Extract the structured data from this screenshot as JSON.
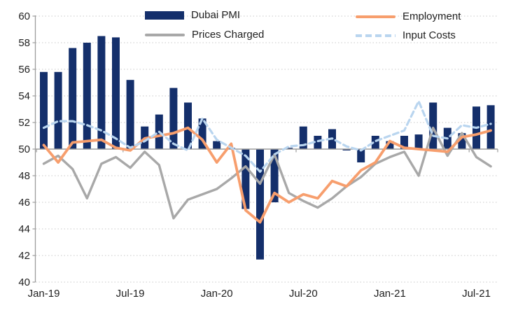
{
  "page": {
    "background": "#ffffff"
  },
  "chart_data": {
    "type": "combo",
    "categories": [
      "Jan-19",
      "Feb-19",
      "Mar-19",
      "Apr-19",
      "May-19",
      "Jun-19",
      "Jul-19",
      "Aug-19",
      "Sep-19",
      "Oct-19",
      "Nov-19",
      "Dec-19",
      "Jan-20",
      "Feb-20",
      "Mar-20",
      "Apr-20",
      "May-20",
      "Jun-20",
      "Jul-20",
      "Aug-20",
      "Sep-20",
      "Oct-20",
      "Nov-20",
      "Dec-20",
      "Jan-21",
      "Feb-21",
      "Mar-21",
      "Apr-21",
      "May-21",
      "Jun-21",
      "Jul-21",
      "Aug-21"
    ],
    "baseline_value": 50,
    "series": [
      {
        "name": "Dubai PMI",
        "type": "bar",
        "color": "#142f6b",
        "values": [
          55.8,
          55.8,
          57.6,
          58.0,
          58.5,
          58.4,
          55.2,
          51.7,
          52.6,
          54.6,
          53.5,
          52.3,
          50.6,
          50.1,
          45.5,
          41.7,
          46.0,
          50.1,
          51.7,
          51.0,
          51.5,
          49.9,
          49.0,
          51.0,
          50.6,
          51.0,
          51.1,
          53.5,
          51.6,
          51.2,
          53.2,
          53.3
        ]
      },
      {
        "name": "Prices Charged",
        "type": "line",
        "dash": "solid",
        "color": "#a8a8a8",
        "values": [
          48.9,
          49.5,
          48.5,
          46.3,
          48.9,
          49.4,
          48.6,
          49.8,
          48.8,
          44.8,
          46.2,
          46.6,
          47.0,
          47.8,
          48.7,
          47.4,
          49.6,
          46.7,
          46.1,
          45.6,
          46.3,
          47.2,
          47.9,
          48.9,
          49.4,
          49.8,
          48.0,
          51.6,
          49.5,
          51.2,
          49.4,
          48.7
        ]
      },
      {
        "name": "Employment",
        "type": "line",
        "dash": "solid",
        "color": "#f79e6d",
        "values": [
          50.3,
          49.0,
          50.5,
          50.6,
          50.7,
          50.1,
          49.9,
          50.8,
          51.0,
          51.2,
          51.6,
          50.7,
          49.0,
          50.4,
          45.4,
          44.5,
          46.7,
          46.0,
          46.6,
          46.3,
          47.6,
          47.2,
          48.4,
          49.0,
          50.6,
          50.1,
          50.0,
          49.9,
          49.8,
          50.9,
          51.1,
          51.4
        ]
      },
      {
        "name": "Input Costs",
        "type": "line",
        "dash": "dashed",
        "color": "#b9d5ef",
        "values": [
          51.6,
          52.1,
          52.1,
          51.8,
          51.4,
          50.8,
          50.1,
          50.6,
          51.3,
          50.4,
          49.9,
          52.3,
          50.7,
          50.1,
          49.5,
          48.3,
          49.6,
          50.2,
          50.3,
          50.6,
          50.8,
          50.2,
          49.9,
          50.6,
          51.0,
          51.4,
          53.6,
          51.0,
          50.8,
          51.8,
          51.6,
          51.9
        ]
      }
    ],
    "y_axis": {
      "min": 40,
      "max": 60,
      "tick_step": 2,
      "tick_labels": [
        "60",
        "58",
        "56",
        "54",
        "52",
        "50",
        "48",
        "46",
        "44",
        "42",
        "40"
      ]
    },
    "x_axis": {
      "visible_labels": [
        {
          "text": "Jan-19",
          "index": 0
        },
        {
          "text": "Jul-19",
          "index": 6
        },
        {
          "text": "Jan-20",
          "index": 12
        },
        {
          "text": "Jul-20",
          "index": 18
        },
        {
          "text": "Jan-21",
          "index": 24
        },
        {
          "text": "Jul-21",
          "index": 30
        }
      ]
    },
    "legend": {
      "position": "top",
      "items": [
        {
          "label": "Dubai PMI",
          "swatch": "bar",
          "color": "#142f6b"
        },
        {
          "label": "Employment",
          "swatch": "line",
          "color": "#f79e6d"
        },
        {
          "label": "Prices Charged",
          "swatch": "line",
          "color": "#a8a8a8"
        },
        {
          "label": "Input Costs",
          "swatch": "dashed-line",
          "color": "#b9d5ef"
        }
      ]
    },
    "gridlines": {
      "style": "dotted",
      "color": "#c8c8c8"
    },
    "axis_color": "#9c9c9c",
    "text_color": "#1f1f1f"
  }
}
